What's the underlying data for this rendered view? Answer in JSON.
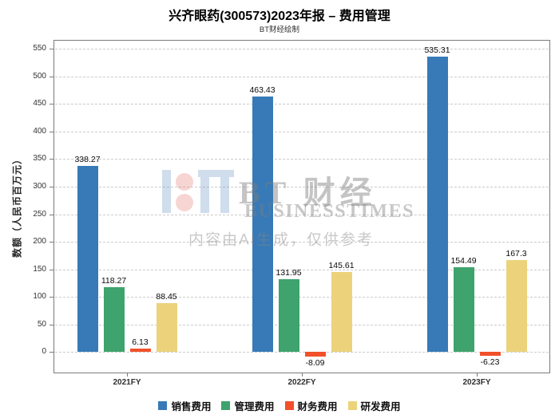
{
  "header": {
    "title": "兴齐眼药(300573)2023年报 – 费用管理",
    "subtitle": "BT财经绘制"
  },
  "watermark": {
    "brand_cjk": "BT 财经",
    "brand_en": "BUSINESSTIMES",
    "disclaimer": "内容由AI生成，仅供参考"
  },
  "chart_data": {
    "type": "bar",
    "title": "兴齐眼药(300573)2023年报 – 费用管理",
    "subtitle": "BT财经绘制",
    "categories": [
      "2021FY",
      "2022FY",
      "2023FY"
    ],
    "series": [
      {
        "name": "销售费用",
        "color": "#377ab7",
        "values": [
          338.27,
          463.43,
          535.31
        ]
      },
      {
        "name": "管理费用",
        "color": "#3ea36c",
        "values": [
          118.27,
          131.95,
          154.49
        ]
      },
      {
        "name": "财务费用",
        "color": "#f1502a",
        "values": [
          6.13,
          -8.09,
          -6.23
        ]
      },
      {
        "name": "研发费用",
        "color": "#ecd37b",
        "values": [
          88.45,
          145.61,
          167.3
        ]
      }
    ],
    "xlabel": "",
    "ylabel": "数额（人民币百万元）",
    "yticks": [
      0,
      50,
      100,
      150,
      200,
      250,
      300,
      350,
      400,
      450,
      500,
      550
    ],
    "ylim": [
      -38.5,
      566
    ],
    "grid": "horizontal-dashed",
    "legend_position": "bottom",
    "value_labels": true
  }
}
